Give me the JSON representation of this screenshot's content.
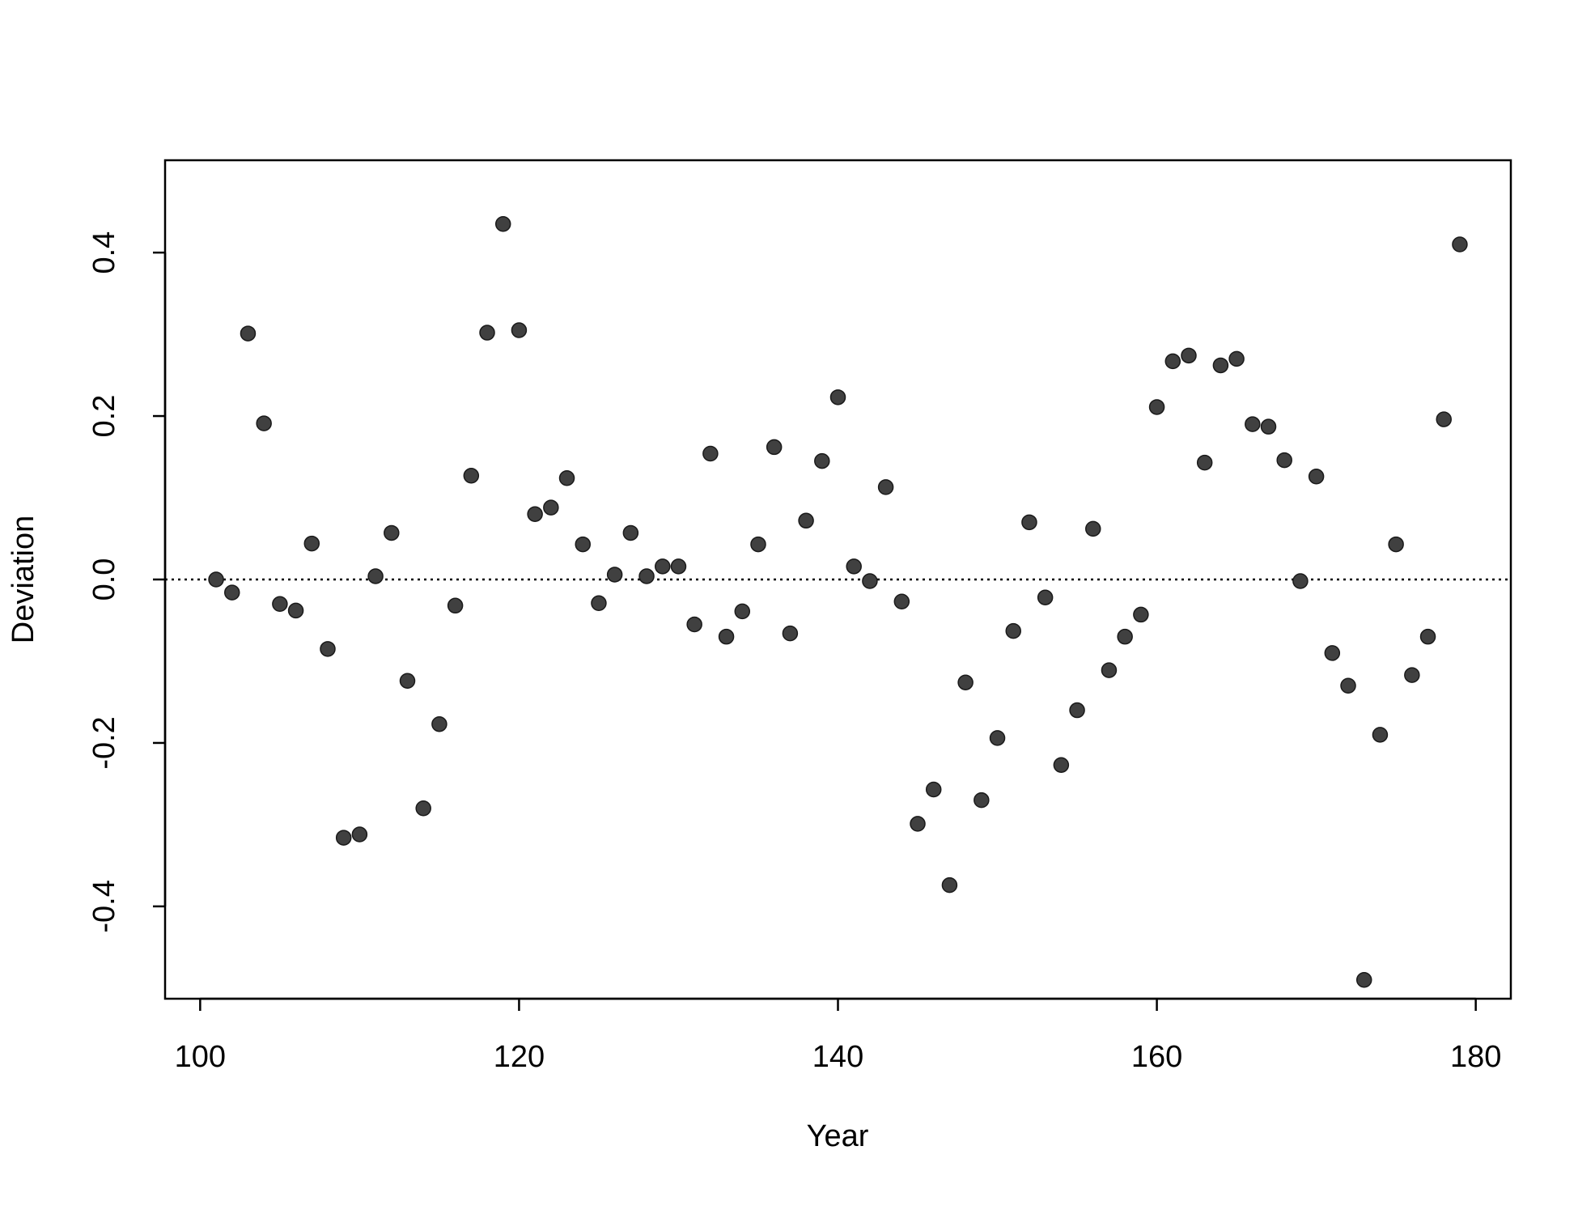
{
  "chart_data": {
    "type": "scatter",
    "x_label": "Year",
    "y_label": "Deviation",
    "x": [
      101,
      102,
      103,
      104,
      105,
      106,
      107,
      108,
      109,
      110,
      111,
      112,
      113,
      114,
      115,
      116,
      117,
      118,
      119,
      120,
      121,
      122,
      123,
      124,
      125,
      126,
      127,
      128,
      129,
      130,
      131,
      132,
      133,
      134,
      135,
      136,
      137,
      138,
      139,
      140,
      141,
      142,
      143,
      144,
      145,
      146,
      147,
      148,
      149,
      150,
      151,
      152,
      153,
      154,
      155,
      156,
      157,
      158,
      159,
      160,
      161,
      162,
      163,
      164,
      165,
      166,
      167,
      168,
      169,
      170,
      171,
      172,
      173,
      174,
      175,
      176,
      177,
      178,
      179
    ],
    "values": [
      0.0,
      -0.016,
      0.301,
      0.191,
      -0.03,
      -0.038,
      0.044,
      -0.085,
      -0.316,
      -0.312,
      0.004,
      0.057,
      -0.124,
      -0.28,
      -0.177,
      -0.032,
      0.127,
      0.302,
      0.435,
      0.305,
      0.08,
      0.088,
      0.124,
      0.043,
      -0.029,
      0.006,
      0.057,
      0.004,
      0.016,
      0.016,
      -0.055,
      0.154,
      -0.07,
      -0.039,
      0.043,
      0.162,
      -0.066,
      0.072,
      0.145,
      0.223,
      0.016,
      -0.002,
      0.113,
      -0.027,
      -0.299,
      -0.257,
      -0.374,
      -0.126,
      -0.27,
      -0.194,
      -0.063,
      0.07,
      -0.022,
      -0.227,
      -0.16,
      0.062,
      -0.111,
      -0.07,
      -0.043,
      0.211,
      0.267,
      0.274,
      0.143,
      0.262,
      0.27,
      0.19,
      0.187,
      0.146,
      -0.002,
      0.126,
      -0.09,
      -0.13,
      -0.49,
      -0.19,
      0.043,
      -0.117,
      -0.07,
      0.196,
      0.41
    ],
    "color": "#404040",
    "reference_line": 0,
    "xlim": [
      97.8,
      182.2
    ],
    "xticks": [
      100,
      120,
      140,
      160,
      180
    ],
    "ylim": [
      -0.513,
      0.513
    ],
    "yticks": [
      -0.4,
      -0.2,
      {
        "value": 0,
        "label": "0.0"
      },
      0.2,
      0.4
    ]
  }
}
